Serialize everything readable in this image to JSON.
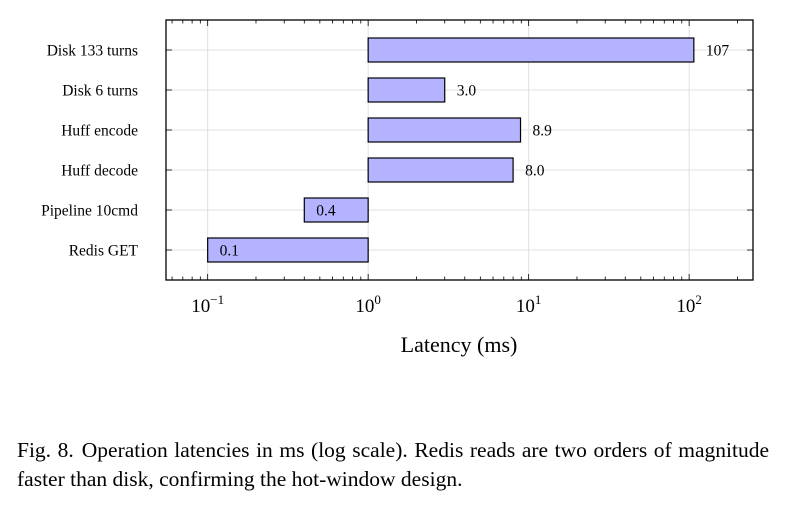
{
  "chart_data": {
    "type": "bar",
    "orientation": "horizontal",
    "xscale": "log",
    "xlim": [
      0.055,
      250
    ],
    "categories": [
      "Redis GET",
      "Pipeline 10cmd",
      "Huff decode",
      "Huff encode",
      "Disk 6 turns",
      "Disk 133 turns"
    ],
    "values": [
      0.1,
      0.4,
      8.0,
      8.9,
      3.0,
      107
    ],
    "labels": [
      "0.1",
      "0.4",
      "8.0",
      "8.9",
      "3.0",
      "107"
    ],
    "bar_base": 1,
    "xticks": [
      {
        "value": 0.1,
        "base": "10",
        "exp": "−1"
      },
      {
        "value": 1,
        "base": "10",
        "exp": "0"
      },
      {
        "value": 10,
        "base": "10",
        "exp": "1"
      },
      {
        "value": 100,
        "base": "10",
        "exp": "2"
      }
    ],
    "xlabel": "Latency (ms)",
    "grid": true,
    "colors": {
      "bar_fill": "#b3b3ff",
      "bar_stroke": "#000000",
      "grid": "#e0e0e0"
    }
  },
  "caption": {
    "label": "Fig. 8.",
    "text": "Operation latencies in ms (log scale). Redis reads are two orders of magnitude faster than disk, confirming the hot-window design."
  }
}
